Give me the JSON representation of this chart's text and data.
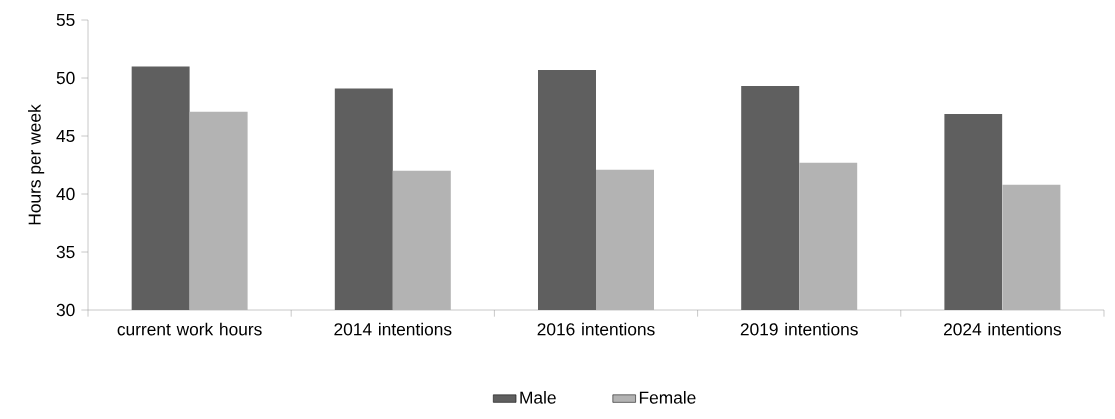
{
  "chart_data": {
    "type": "bar",
    "ylabel": "Hours per week",
    "categories": [
      "current work hours",
      "2014 intentions",
      "2016 intentions",
      "2019 intentions",
      "2024 intentions"
    ],
    "series": [
      {
        "name": "Male",
        "color": "#5f5f5f",
        "values": [
          51.0,
          49.1,
          50.7,
          49.3,
          46.9
        ]
      },
      {
        "name": "Female",
        "color": "#b3b3b3",
        "values": [
          47.1,
          42.0,
          42.1,
          42.7,
          40.8
        ]
      }
    ],
    "ylim": [
      30,
      55
    ],
    "yticks": [
      30,
      35,
      40,
      45,
      50,
      55
    ],
    "legend": "bottom"
  }
}
